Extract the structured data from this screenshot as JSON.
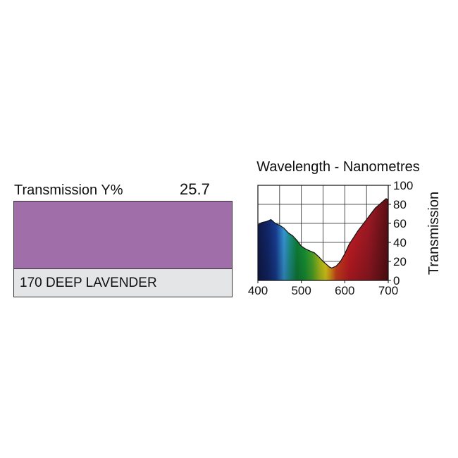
{
  "filter": {
    "transmission_label": "Transmission Y%",
    "transmission_value": "25.7",
    "name": "170 DEEP LAVENDER",
    "swatch_color": "#a06ea8"
  },
  "chart_data": {
    "type": "area",
    "title": "Wavelength - Nanometres",
    "xlabel": "",
    "ylabel": "Transmission",
    "xlim": [
      400,
      700
    ],
    "ylim": [
      0,
      100
    ],
    "xticks": [
      400,
      500,
      600,
      700
    ],
    "yticks": [
      0,
      20,
      40,
      60,
      80,
      100
    ],
    "grid": true,
    "fill": "visible-spectrum gradient",
    "x": [
      400,
      405,
      410,
      420,
      425,
      430,
      440,
      445,
      450,
      460,
      470,
      480,
      490,
      500,
      510,
      520,
      530,
      540,
      550,
      560,
      565,
      570,
      575,
      580,
      590,
      600,
      610,
      620,
      630,
      640,
      650,
      660,
      670,
      680,
      690,
      695,
      700
    ],
    "y": [
      58,
      60,
      61,
      62,
      63,
      64,
      60,
      59,
      58,
      55,
      50,
      47,
      42,
      36,
      33,
      31,
      29,
      25,
      20,
      16,
      14,
      13,
      14,
      15,
      20,
      28,
      38,
      45,
      52,
      58,
      64,
      70,
      76,
      80,
      84,
      86,
      85
    ]
  }
}
